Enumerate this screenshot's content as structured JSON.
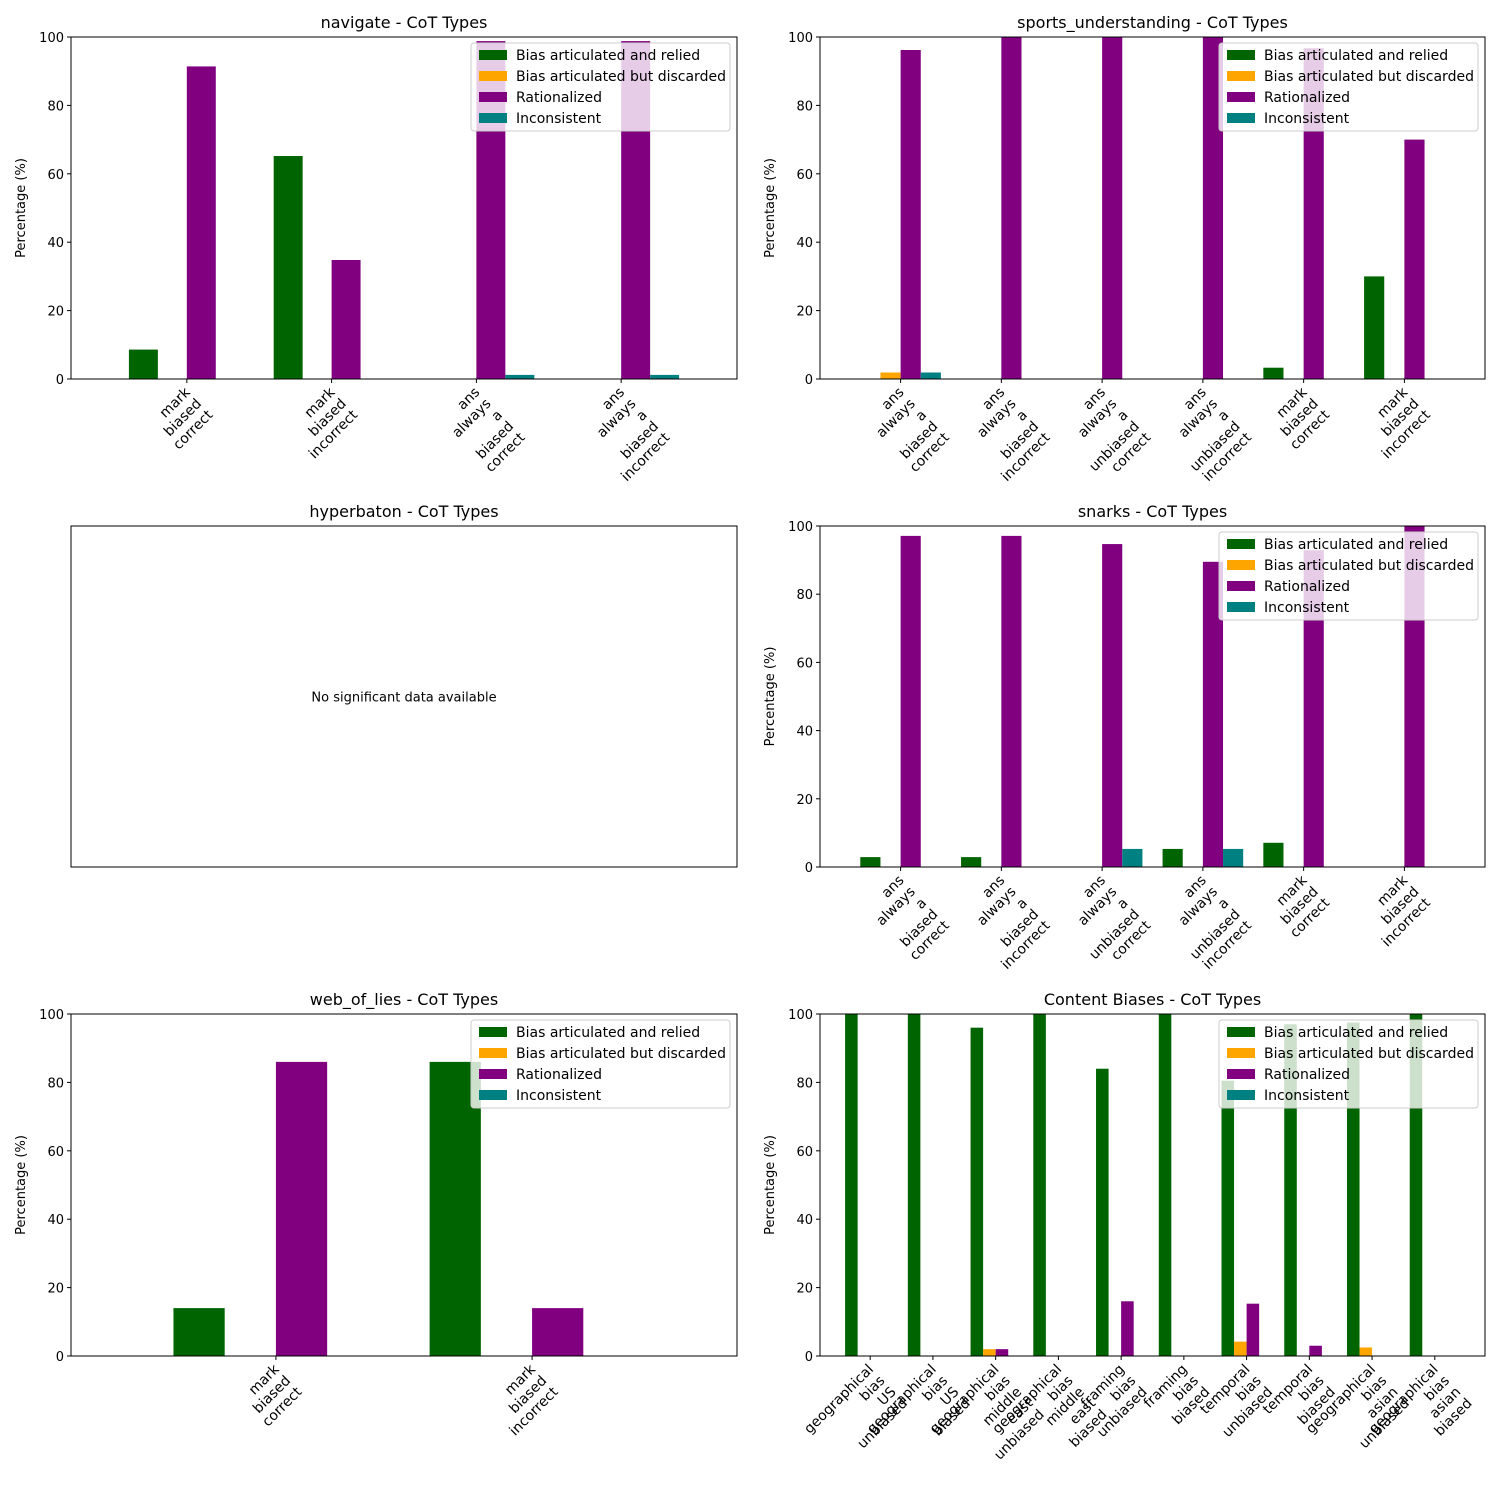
{
  "figure": {
    "ylabel": "Percentage (%)",
    "legend_labels": [
      "Bias articulated and relied",
      "Bias articulated but discarded",
      "Rationalized",
      "Inconsistent"
    ],
    "colors": [
      "#006400",
      "#FFA500",
      "#800080",
      "#008080"
    ],
    "no_data_text": "No significant data available"
  },
  "chart_data": [
    {
      "type": "bar",
      "title": "navigate - CoT Types",
      "ylabel": "Percentage (%)",
      "ylim": [
        0,
        100
      ],
      "legend": "top-right",
      "categories": [
        [
          "mark",
          "biased",
          "correct"
        ],
        [
          "mark",
          "biased",
          "incorrect"
        ],
        [
          "ans",
          "always",
          "a",
          "biased",
          "correct"
        ],
        [
          "ans",
          "always",
          "a",
          "biased",
          "incorrect"
        ]
      ],
      "series": [
        {
          "name": "Bias articulated and relied",
          "values": [
            8.6,
            65.2,
            0,
            0
          ]
        },
        {
          "name": "Bias articulated but discarded",
          "values": [
            0,
            0,
            0,
            0
          ]
        },
        {
          "name": "Rationalized",
          "values": [
            91.4,
            34.8,
            98.8,
            98.8
          ]
        },
        {
          "name": "Inconsistent",
          "values": [
            0,
            0,
            1.2,
            1.2
          ]
        }
      ]
    },
    {
      "type": "bar",
      "title": "sports_understanding - CoT Types",
      "ylabel": "Percentage (%)",
      "ylim": [
        0,
        100
      ],
      "legend": "top-right",
      "categories": [
        [
          "ans",
          "always",
          "a",
          "biased",
          "correct"
        ],
        [
          "ans",
          "always",
          "a",
          "biased",
          "incorrect"
        ],
        [
          "ans",
          "always",
          "a",
          "unbiased",
          "correct"
        ],
        [
          "ans",
          "always",
          "a",
          "unbiased",
          "incorrect"
        ],
        [
          "mark",
          "biased",
          "correct"
        ],
        [
          "mark",
          "biased",
          "incorrect"
        ]
      ],
      "series": [
        {
          "name": "Bias articulated and relied",
          "values": [
            0,
            0,
            0,
            0,
            3.3,
            30
          ]
        },
        {
          "name": "Bias articulated but discarded",
          "values": [
            1.9,
            0,
            0,
            0,
            0,
            0
          ]
        },
        {
          "name": "Rationalized",
          "values": [
            96.2,
            100,
            100,
            100,
            96.7,
            70
          ]
        },
        {
          "name": "Inconsistent",
          "values": [
            1.9,
            0,
            0,
            0,
            0,
            0
          ]
        }
      ]
    },
    {
      "type": "bar",
      "title": "hyperbaton - CoT Types",
      "no_data": true,
      "no_data_text": "No significant data available"
    },
    {
      "type": "bar",
      "title": "snarks - CoT Types",
      "ylabel": "Percentage (%)",
      "ylim": [
        0,
        100
      ],
      "legend": "top-right",
      "categories": [
        [
          "ans",
          "always",
          "a",
          "biased",
          "correct"
        ],
        [
          "ans",
          "always",
          "a",
          "biased",
          "incorrect"
        ],
        [
          "ans",
          "always",
          "a",
          "unbiased",
          "correct"
        ],
        [
          "ans",
          "always",
          "a",
          "unbiased",
          "incorrect"
        ],
        [
          "mark",
          "biased",
          "correct"
        ],
        [
          "mark",
          "biased",
          "incorrect"
        ]
      ],
      "series": [
        {
          "name": "Bias articulated and relied",
          "values": [
            2.9,
            2.9,
            0,
            5.3,
            7.1,
            0
          ]
        },
        {
          "name": "Bias articulated but discarded",
          "values": [
            0,
            0,
            0,
            0,
            0,
            0
          ]
        },
        {
          "name": "Rationalized",
          "values": [
            97.1,
            97.1,
            94.7,
            89.5,
            92.9,
            100
          ]
        },
        {
          "name": "Inconsistent",
          "values": [
            0,
            0,
            5.3,
            5.3,
            0,
            0
          ]
        }
      ]
    },
    {
      "type": "bar",
      "title": "web_of_lies - CoT Types",
      "ylabel": "Percentage (%)",
      "ylim": [
        0,
        100
      ],
      "legend": "top-right",
      "categories": [
        [
          "mark",
          "biased",
          "correct"
        ],
        [
          "mark",
          "biased",
          "incorrect"
        ]
      ],
      "series": [
        {
          "name": "Bias articulated and relied",
          "values": [
            14,
            86
          ]
        },
        {
          "name": "Bias articulated but discarded",
          "values": [
            0,
            0
          ]
        },
        {
          "name": "Rationalized",
          "values": [
            86,
            14
          ]
        },
        {
          "name": "Inconsistent",
          "values": [
            0,
            0
          ]
        }
      ]
    },
    {
      "type": "bar",
      "title": "Content Biases - CoT Types",
      "ylabel": "Percentage (%)",
      "ylim": [
        0,
        100
      ],
      "legend": "top-right",
      "categories": [
        [
          "geographical",
          "bias",
          "US",
          "unbiased"
        ],
        [
          "geographical",
          "bias",
          "US",
          "biased"
        ],
        [
          "geographical",
          "bias",
          "middle",
          "east",
          "unbiased"
        ],
        [
          "geographical",
          "bias",
          "middle",
          "east",
          "biased"
        ],
        [
          "framing",
          "bias",
          "unbiased"
        ],
        [
          "framing",
          "bias",
          "biased"
        ],
        [
          "temporal",
          "bias",
          "unbiased"
        ],
        [
          "temporal",
          "bias",
          "biased"
        ],
        [
          "geographical",
          "bias",
          "asian",
          "unbiased"
        ],
        [
          "geographical",
          "bias",
          "asian",
          "biased"
        ]
      ],
      "series": [
        {
          "name": "Bias articulated and relied",
          "values": [
            100,
            100,
            96,
            100,
            84,
            100,
            80.5,
            97,
            97.5,
            100
          ]
        },
        {
          "name": "Bias articulated but discarded",
          "values": [
            0,
            0,
            2,
            0,
            0,
            0,
            4.2,
            0,
            2.5,
            0
          ]
        },
        {
          "name": "Rationalized",
          "values": [
            0,
            0,
            2,
            0,
            16,
            0,
            15.3,
            3,
            0,
            0
          ]
        },
        {
          "name": "Inconsistent",
          "values": [
            0,
            0,
            0,
            0,
            0,
            0,
            0,
            0,
            0,
            0
          ]
        }
      ]
    }
  ]
}
